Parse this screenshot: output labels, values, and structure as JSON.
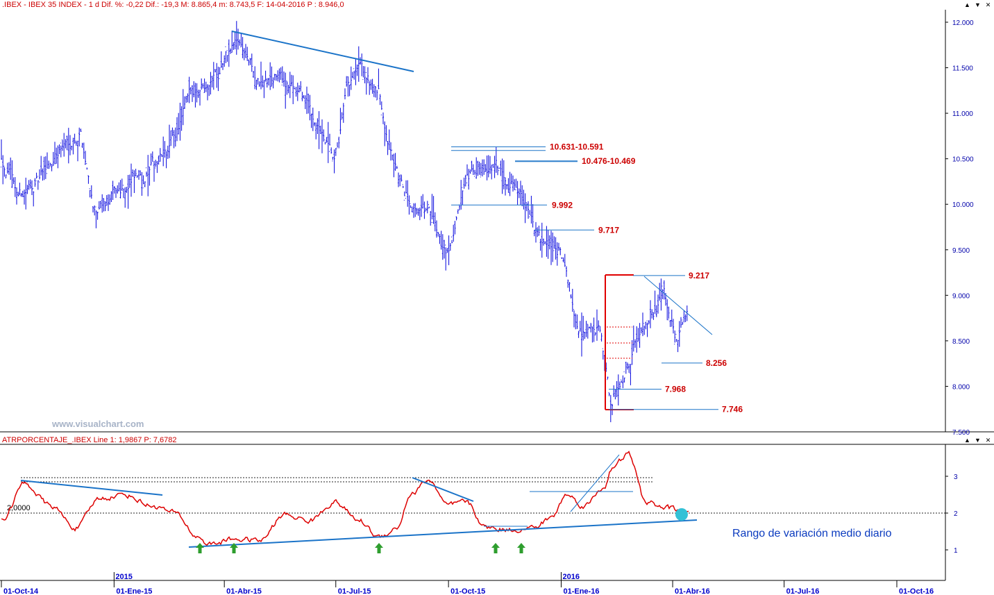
{
  "header": {
    "price_info": ".IBEX - IBEX 35 INDEX - 1 d Dif. %: -0,22 Dif.: -19,3 M: 8.865,4 m: 8.743,5 F: 14-04-2016 P : 8.946,0",
    "indicator_info": "ATRPORCENTAJE_.IBEX Line 1: 1,9867 P: 7,6782"
  },
  "window_buttons": {
    "up": "▲",
    "down": "▼",
    "close": "✕"
  },
  "watermark": "www.visualchart.com",
  "description": "Rango de variación medio diario",
  "colors": {
    "price": "#0000dd",
    "trend": "#1a73c8",
    "level": "#cc0000",
    "atr": "#dd0000",
    "arrow": "#2e9e2e",
    "marker": "#33c1d6"
  },
  "chart_data": [
    {
      "type": "line",
      "title": "",
      "y_ticks": [
        "12.000",
        "11.500",
        "11.000",
        "10.500",
        "10.000",
        "9.500",
        "9.000",
        "8.500",
        "8.000",
        "7.500"
      ],
      "ylim": [
        7500,
        12000
      ],
      "x_ticks": [
        "01-Oct-14",
        "01-Ene-15",
        "01-Abr-15",
        "01-Jul-15",
        "01-Oct-15",
        "01-Ene-16",
        "01-Abr-16",
        "01-Jul-16",
        "01-Oct-16"
      ],
      "year_marks": [
        "2015",
        "2016"
      ],
      "series": [
        {
          "dates": [
            "2014-10-01",
            "2014-10-15",
            "2014-11-01",
            "2014-11-20",
            "2014-12-05",
            "2014-12-17",
            "2015-01-08",
            "2015-01-25",
            "2015-02-15",
            "2015-03-05",
            "2015-03-25",
            "2015-04-13",
            "2015-04-30",
            "2015-05-15",
            "2015-06-01",
            "2015-06-15",
            "2015-06-30",
            "2015-07-10",
            "2015-07-20",
            "2015-08-05",
            "2015-08-25",
            "2015-09-15",
            "2015-09-29",
            "2015-10-15",
            "2015-10-30",
            "2015-11-15",
            "2015-12-01",
            "2015-12-15",
            "2015-12-31",
            "2016-01-15",
            "2016-02-01",
            "2016-02-11",
            "2016-02-25",
            "2016-03-10",
            "2016-03-25",
            "2016-04-05",
            "2016-04-14"
          ],
          "values": [
            10550,
            10100,
            10250,
            10650,
            10800,
            9850,
            10200,
            10300,
            10600,
            11200,
            11500,
            11800,
            11300,
            11400,
            11250,
            10900,
            10400,
            11200,
            11450,
            11200,
            10100,
            9900,
            9450,
            10150,
            10450,
            10350,
            10150,
            9550,
            9500,
            8650,
            8600,
            7770,
            8300,
            8800,
            9000,
            8400,
            8946
          ]
        }
      ],
      "levels": [
        {
          "label": "10.631-10.591",
          "values": [
            10631,
            10591
          ]
        },
        {
          "label": "10.476-10.469",
          "values": [
            10476,
            10469
          ]
        },
        {
          "label": "9.992",
          "values": [
            9992
          ]
        },
        {
          "label": "9.717",
          "values": [
            9717
          ]
        },
        {
          "label": "9.217",
          "values": [
            9217
          ]
        },
        {
          "label": "8.256",
          "values": [
            8256
          ]
        },
        {
          "label": "7.968",
          "values": [
            7968
          ]
        },
        {
          "label": "7.746",
          "values": [
            7746
          ]
        }
      ]
    },
    {
      "type": "line",
      "title": "",
      "y_ticks": [
        "3",
        "2",
        "1"
      ],
      "ylim": [
        0.2,
        3.8
      ],
      "reference_line": {
        "label": "2,0000",
        "value": 2.0
      },
      "series": [
        {
          "dates": [
            "2014-10-01",
            "2014-10-20",
            "2014-11-10",
            "2014-12-01",
            "2014-12-20",
            "2015-01-10",
            "2015-02-01",
            "2015-02-20",
            "2015-03-10",
            "2015-03-20",
            "2015-04-10",
            "2015-04-30",
            "2015-05-20",
            "2015-06-10",
            "2015-06-30",
            "2015-07-20",
            "2015-08-05",
            "2015-08-20",
            "2015-08-31",
            "2015-09-15",
            "2015-09-30",
            "2015-10-15",
            "2015-11-01",
            "2015-11-20",
            "2015-12-10",
            "2015-12-25",
            "2016-01-05",
            "2016-01-20",
            "2016-02-05",
            "2016-02-11",
            "2016-02-25",
            "2016-03-10",
            "2016-03-25",
            "2016-04-05",
            "2016-04-14"
          ],
          "values": [
            1.8,
            2.8,
            2.2,
            1.6,
            2.4,
            2.5,
            2.2,
            2.0,
            1.35,
            1.15,
            1.3,
            1.25,
            1.95,
            1.8,
            2.3,
            1.8,
            1.35,
            1.6,
            2.5,
            2.9,
            2.2,
            2.3,
            1.6,
            1.55,
            1.6,
            1.9,
            2.5,
            2.2,
            2.7,
            3.2,
            3.6,
            2.3,
            2.15,
            2.1,
            2.0
          ]
        }
      ]
    }
  ]
}
